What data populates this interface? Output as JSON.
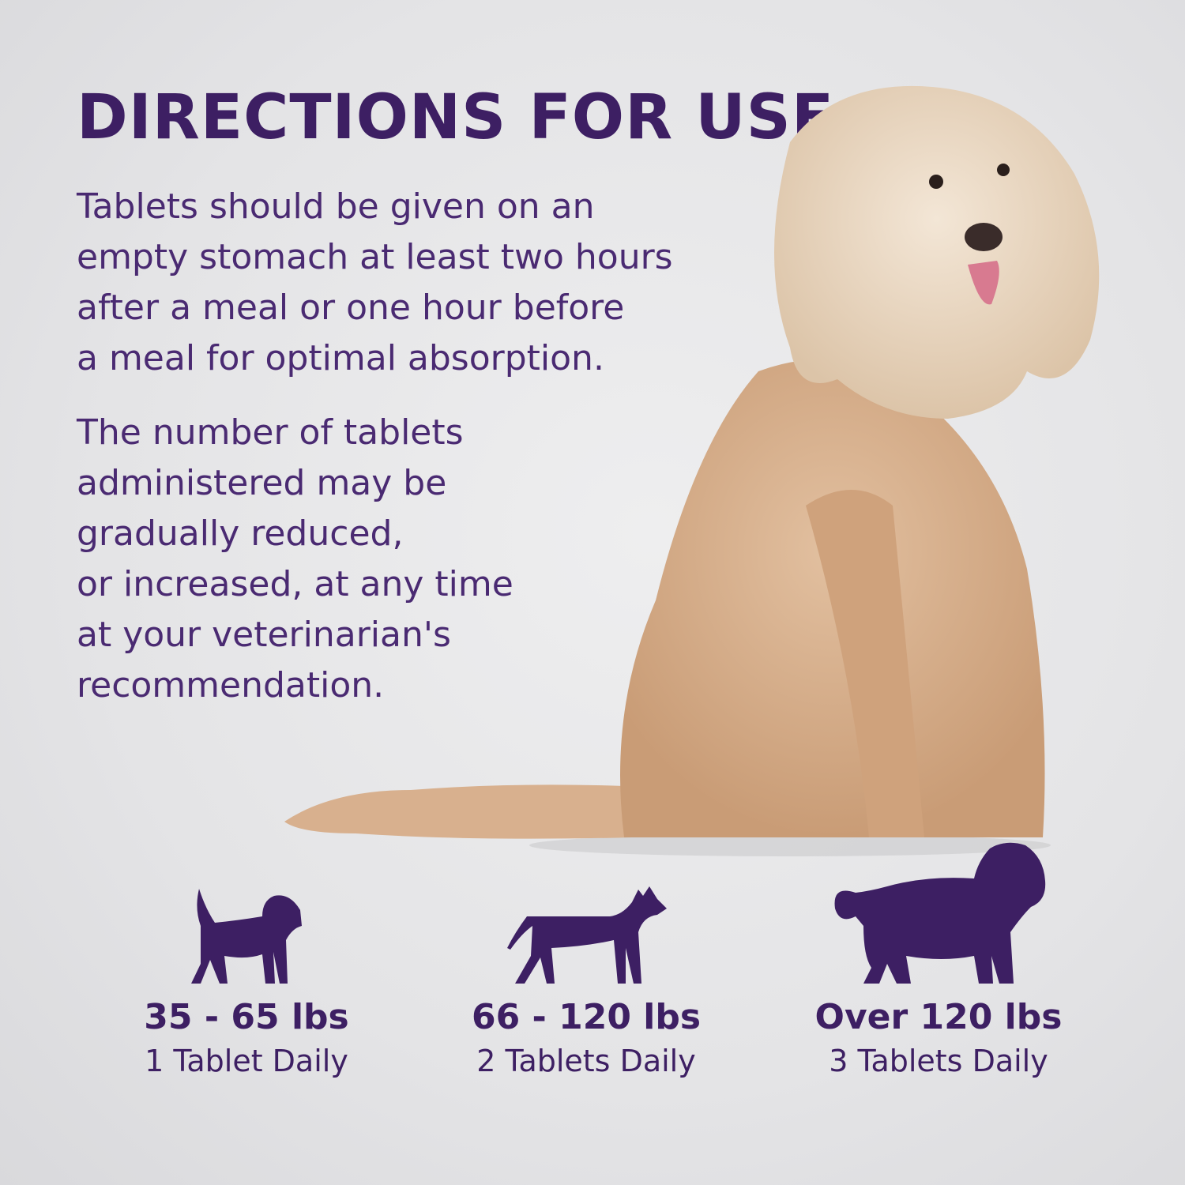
{
  "title": "DIRECTIONS FOR USE",
  "paragraph1": [
    "Tablets should be given on an",
    "empty stomach at least two hours",
    "after a meal or one hour before",
    "a meal for optimal absorption."
  ],
  "paragraph2": [
    "The number of tablets",
    "administered may be",
    "gradually reduced,",
    "or increased, at any time",
    "at your veterinarian's",
    "recommendation."
  ],
  "dosage": [
    {
      "range": "35 - 65 lbs",
      "dose": "1 Tablet Daily",
      "icon": "small-dog-silhouette-icon"
    },
    {
      "range": "66 - 120 lbs",
      "dose": "2 Tablets Daily",
      "icon": "medium-dog-silhouette-icon"
    },
    {
      "range": "Over 120 lbs",
      "dose": "3 Tablets Daily",
      "icon": "large-dog-silhouette-icon"
    }
  ],
  "colors": {
    "brand_purple": "#3d1f63",
    "background": "#e6e6e8",
    "dog_fur": "#d8b08e"
  }
}
